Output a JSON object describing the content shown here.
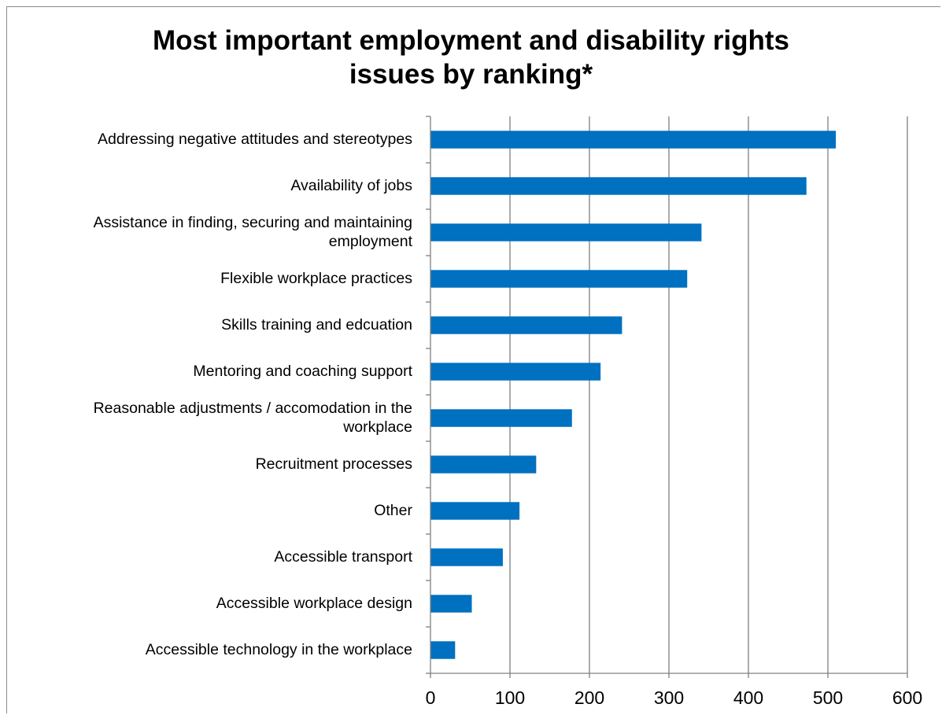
{
  "chart_data": {
    "type": "bar",
    "orientation": "horizontal",
    "title_lines": [
      "Most important employment and disability rights",
      "issues by ranking*"
    ],
    "categories": [
      [
        "Addressing negative attitudes and stereotypes"
      ],
      [
        "Availability of jobs"
      ],
      [
        "Assistance in finding, securing and maintaining",
        "employment"
      ],
      [
        "Flexible workplace practices"
      ],
      [
        "Skills training and edcuation"
      ],
      [
        "Mentoring and coaching support"
      ],
      [
        "Reasonable adjustments / accomodation in the",
        "workplace"
      ],
      [
        "Recruitment processes"
      ],
      [
        "Other"
      ],
      [
        "Accessible transport"
      ],
      [
        "Accessible workplace design"
      ],
      [
        "Accessible technology in the workplace"
      ]
    ],
    "values": [
      510,
      473,
      341,
      323,
      241,
      214,
      178,
      133,
      112,
      91,
      52,
      31
    ],
    "xlim": [
      0,
      600
    ],
    "xticks": [
      "0",
      "100",
      "200",
      "300",
      "400",
      "500",
      "600"
    ],
    "grid": true,
    "bar_color": "#0070c0",
    "grid_color": "#808080"
  }
}
